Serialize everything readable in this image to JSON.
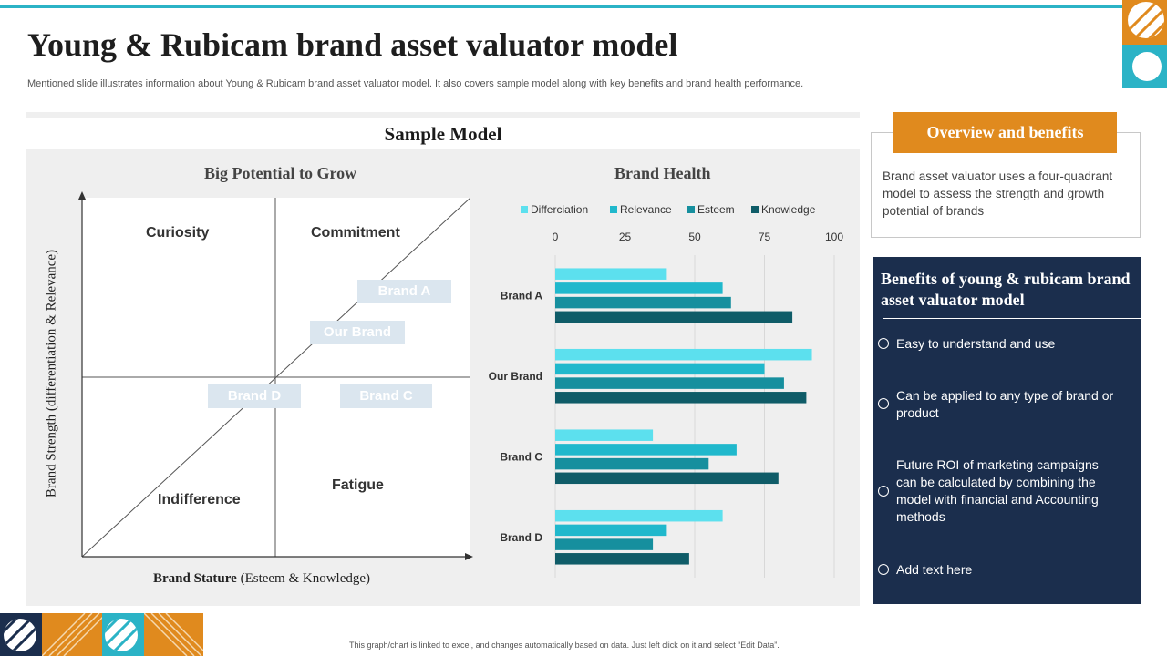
{
  "header": {
    "title": "Young & Rubicam brand asset valuator model",
    "subtitle": "Mentioned slide illustrates information about Young & Rubicam brand asset valuator model. It also covers sample model along with key benefits and brand health performance."
  },
  "sample_model": {
    "title": "Sample Model",
    "quadrant": {
      "title": "Big Potential to Grow",
      "quadrants": {
        "top_left": "Curiosity",
        "top_right": "Commitment",
        "bottom_left": "Indifference",
        "bottom_right": "Fatigue"
      },
      "brands": [
        "Brand A",
        "Our Brand",
        "Brand D",
        "Brand C"
      ],
      "y_axis_label": "Brand Strength (differentiation & Relevance)",
      "x_axis_label_bold": "Brand Stature",
      "x_axis_label_rest": "(Esteem & Knowledge)"
    }
  },
  "overview": {
    "title": "Overview and benefits",
    "text": "Brand asset valuator uses a four-quadrant model to assess the strength and growth potential of brands"
  },
  "benefits": {
    "title": "Benefits of young & rubicam brand asset valuator model",
    "items": [
      "Easy to understand and use",
      "Can be applied to any type of brand or product",
      "Future ROI of marketing campaigns can be calculated by combining the model with financial and Accounting methods",
      "Add text here"
    ]
  },
  "footer": {
    "note": "This graph/chart is linked to excel, and changes automatically based on data. Just left click on it and select “Edit Data”."
  },
  "chart_data": {
    "type": "bar",
    "orientation": "horizontal",
    "title": "Brand Health",
    "categories": [
      "Brand A",
      "Our Brand",
      "Brand C",
      "Brand D"
    ],
    "series": [
      {
        "name": "Differciation",
        "color": "#5ce0ee",
        "values": [
          40,
          92,
          35,
          60
        ]
      },
      {
        "name": "Relevance",
        "color": "#20b8cc",
        "values": [
          60,
          75,
          65,
          40
        ]
      },
      {
        "name": "Esteem",
        "color": "#168f9e",
        "values": [
          63,
          82,
          55,
          35
        ]
      },
      {
        "name": "Knowledge",
        "color": "#0f5c68",
        "values": [
          85,
          90,
          80,
          48
        ]
      }
    ],
    "xlim": [
      0,
      100
    ],
    "xticks": [
      0,
      25,
      50,
      75,
      100
    ],
    "grid": true,
    "legend_position": "top"
  },
  "colors": {
    "accent_teal": "#2bb3c6",
    "accent_orange": "#e08a1e",
    "navy": "#1b2e4d"
  }
}
